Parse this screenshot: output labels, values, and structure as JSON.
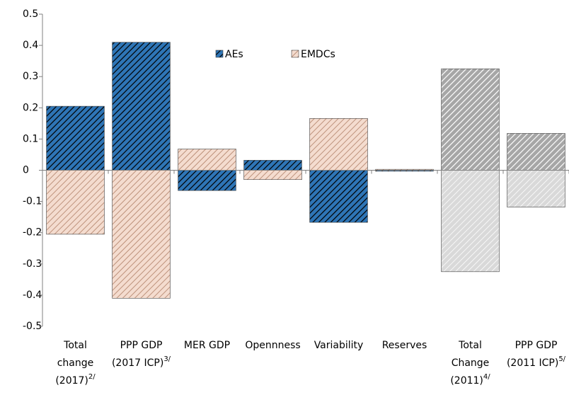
{
  "chart_data": {
    "type": "bar",
    "categories": [
      "Total change (2017)",
      "PPP GDP (2017 ICP)",
      "MER GDP",
      "Opennness",
      "Variability",
      "Reserves",
      "Total Change (2011)",
      "PPP GDP (2011 ICP)"
    ],
    "category_notes": [
      "2/",
      "3/",
      null,
      null,
      null,
      null,
      "4/",
      "5/"
    ],
    "series": [
      {
        "name": "AEs",
        "color": "#2e75b6",
        "colors": [
          "#2e75b6",
          "#2e75b6",
          "#2e75b6",
          "#2e75b6",
          "#2e75b6",
          "#2e75b6",
          "#a6a6a6",
          "#a6a6a6"
        ],
        "values": [
          0.205,
          0.41,
          -0.065,
          0.032,
          -0.167,
          -0.003,
          0.325,
          0.118
        ]
      },
      {
        "name": "EMDCs",
        "color": "#f4dccf",
        "colors": [
          "#f4dccf",
          "#f4dccf",
          "#f4dccf",
          "#f4dccf",
          "#f4dccf",
          "#f4dccf",
          "#d9d9d9",
          "#d9d9d9"
        ],
        "values": [
          -0.205,
          -0.41,
          0.068,
          -0.03,
          0.166,
          0.003,
          -0.325,
          -0.118
        ]
      }
    ],
    "ylim": [
      -0.5,
      0.5
    ],
    "yticks": [
      -0.5,
      -0.4,
      -0.3,
      -0.2,
      -0.1,
      0,
      0.1,
      0.2,
      0.3,
      0.4,
      0.5
    ],
    "grid": false,
    "legend": "top"
  }
}
